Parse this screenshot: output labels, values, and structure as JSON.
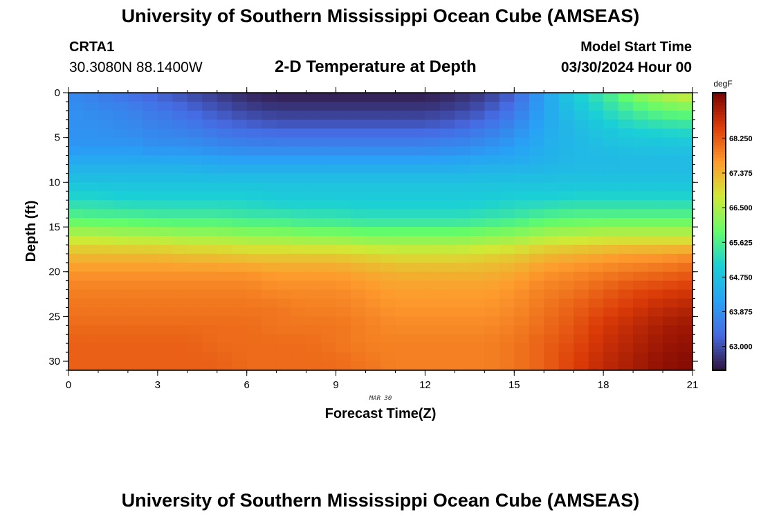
{
  "header": {
    "title": "University of Southern Mississippi Ocean Cube (AMSEAS)",
    "station": "CRTA1",
    "coordinates": "30.3080N  88.1400W",
    "subtitle": "2-D Temperature at Depth",
    "model_start_label": "Model Start Time",
    "model_start_value": "03/30/2024 Hour 00"
  },
  "footer": {
    "title": "University of Southern Mississippi Ocean Cube (AMSEAS)"
  },
  "chart_data": {
    "type": "heatmap",
    "title": "2-D Temperature at Depth",
    "xlabel": "Forecast Time(Z)",
    "ylabel": "Depth (ft)",
    "date_label": "MAR 30",
    "x_ticks": [
      "0",
      "3",
      "6",
      "9",
      "12",
      "15",
      "18",
      "21"
    ],
    "y_ticks": [
      "0",
      "5",
      "10",
      "15",
      "20",
      "25",
      "30"
    ],
    "xlim": [
      0,
      21
    ],
    "ylim": [
      0,
      31
    ],
    "x_hours": [
      0,
      1,
      2,
      3,
      4,
      5,
      6,
      7,
      8,
      9,
      10,
      11,
      12,
      13,
      14,
      15,
      16,
      17,
      18,
      19,
      20,
      21
    ],
    "depth_ft": [
      0,
      2,
      4,
      6,
      8,
      10,
      12,
      14,
      16,
      18,
      20,
      22,
      24,
      26,
      28,
      30
    ],
    "values_degF": [
      [
        63.8,
        63.6,
        63.4,
        63.2,
        63.0,
        62.8,
        62.6,
        62.5,
        62.5,
        62.5,
        62.5,
        62.5,
        62.5,
        62.6,
        62.8,
        63.2,
        64.2,
        65.0,
        65.5,
        66.2,
        66.6,
        66.9
      ],
      [
        63.9,
        63.8,
        63.7,
        63.5,
        63.3,
        63.1,
        62.9,
        62.8,
        62.8,
        62.8,
        62.8,
        62.8,
        62.8,
        62.9,
        63.1,
        63.5,
        64.2,
        64.8,
        65.2,
        65.6,
        65.9,
        66.0
      ],
      [
        63.9,
        63.9,
        63.8,
        63.7,
        63.6,
        63.4,
        63.3,
        63.2,
        63.2,
        63.2,
        63.2,
        63.2,
        63.2,
        63.3,
        63.5,
        63.8,
        64.3,
        64.6,
        64.9,
        65.1,
        65.2,
        65.3
      ],
      [
        64.0,
        64.0,
        64.0,
        63.9,
        63.9,
        63.8,
        63.7,
        63.7,
        63.7,
        63.7,
        63.7,
        63.7,
        63.7,
        63.8,
        63.9,
        64.1,
        64.4,
        64.6,
        64.7,
        64.8,
        64.8,
        64.8
      ],
      [
        64.4,
        64.4,
        64.4,
        64.4,
        64.4,
        64.3,
        64.3,
        64.3,
        64.3,
        64.3,
        64.3,
        64.3,
        64.3,
        64.3,
        64.4,
        64.4,
        64.5,
        64.6,
        64.6,
        64.6,
        64.6,
        64.6
      ],
      [
        64.8,
        64.8,
        64.8,
        64.8,
        64.8,
        64.8,
        64.8,
        64.8,
        64.8,
        64.8,
        64.8,
        64.8,
        64.8,
        64.8,
        64.8,
        64.8,
        64.8,
        64.8,
        64.8,
        64.8,
        64.8,
        64.8
      ],
      [
        65.2,
        65.2,
        65.1,
        65.1,
        65.1,
        65.1,
        65.1,
        65.0,
        65.0,
        65.0,
        65.0,
        65.0,
        65.0,
        65.0,
        65.0,
        65.1,
        65.1,
        65.2,
        65.2,
        65.2,
        65.2,
        65.2
      ],
      [
        65.8,
        65.7,
        65.7,
        65.6,
        65.6,
        65.6,
        65.5,
        65.5,
        65.4,
        65.4,
        65.3,
        65.3,
        65.3,
        65.3,
        65.4,
        65.5,
        65.7,
        65.8,
        65.8,
        65.8,
        65.8,
        65.8
      ],
      [
        66.6,
        66.6,
        66.5,
        66.5,
        66.4,
        66.4,
        66.3,
        66.3,
        66.2,
        66.2,
        66.1,
        66.1,
        66.1,
        66.1,
        66.2,
        66.3,
        66.5,
        66.6,
        66.7,
        66.7,
        66.7,
        66.7
      ],
      [
        67.3,
        67.3,
        67.3,
        67.3,
        67.2,
        67.2,
        67.1,
        67.1,
        67.1,
        67.1,
        67.0,
        66.9,
        66.9,
        66.9,
        67.0,
        67.1,
        67.3,
        67.4,
        67.5,
        67.6,
        67.6,
        67.7
      ],
      [
        67.7,
        67.7,
        67.7,
        67.7,
        67.7,
        67.7,
        67.7,
        67.6,
        67.6,
        67.6,
        67.5,
        67.4,
        67.4,
        67.4,
        67.4,
        67.5,
        67.7,
        67.8,
        67.9,
        68.0,
        68.1,
        68.2
      ],
      [
        67.9,
        67.9,
        67.9,
        67.9,
        67.9,
        67.9,
        67.9,
        67.8,
        67.8,
        67.8,
        67.7,
        67.6,
        67.6,
        67.6,
        67.6,
        67.7,
        67.9,
        68.0,
        68.2,
        68.4,
        68.5,
        68.6
      ],
      [
        68.0,
        68.0,
        68.0,
        68.0,
        68.0,
        68.0,
        68.0,
        68.0,
        67.9,
        67.9,
        67.8,
        67.7,
        67.7,
        67.7,
        67.7,
        67.8,
        68.0,
        68.2,
        68.4,
        68.6,
        68.8,
        68.9
      ],
      [
        68.1,
        68.1,
        68.1,
        68.1,
        68.1,
        68.1,
        68.1,
        68.0,
        68.0,
        68.0,
        67.9,
        67.8,
        67.8,
        67.8,
        67.8,
        67.9,
        68.1,
        68.3,
        68.6,
        68.8,
        69.0,
        69.1
      ],
      [
        68.2,
        68.2,
        68.2,
        68.2,
        68.2,
        68.1,
        68.1,
        68.1,
        68.1,
        68.0,
        67.9,
        67.9,
        67.9,
        67.9,
        67.9,
        68.0,
        68.2,
        68.4,
        68.7,
        68.9,
        69.1,
        69.2
      ],
      [
        68.2,
        68.2,
        68.2,
        68.2,
        68.2,
        68.2,
        68.1,
        68.1,
        68.1,
        68.1,
        68.0,
        67.9,
        67.9,
        67.9,
        67.9,
        68.0,
        68.2,
        68.5,
        68.8,
        69.0,
        69.2,
        69.3
      ]
    ],
    "colorbar": {
      "unit": "degF",
      "tick_labels": [
        "63.000",
        "63.875",
        "64.750",
        "65.625",
        "66.500",
        "67.375",
        "68.250"
      ],
      "range": [
        62.4,
        69.4
      ]
    }
  }
}
